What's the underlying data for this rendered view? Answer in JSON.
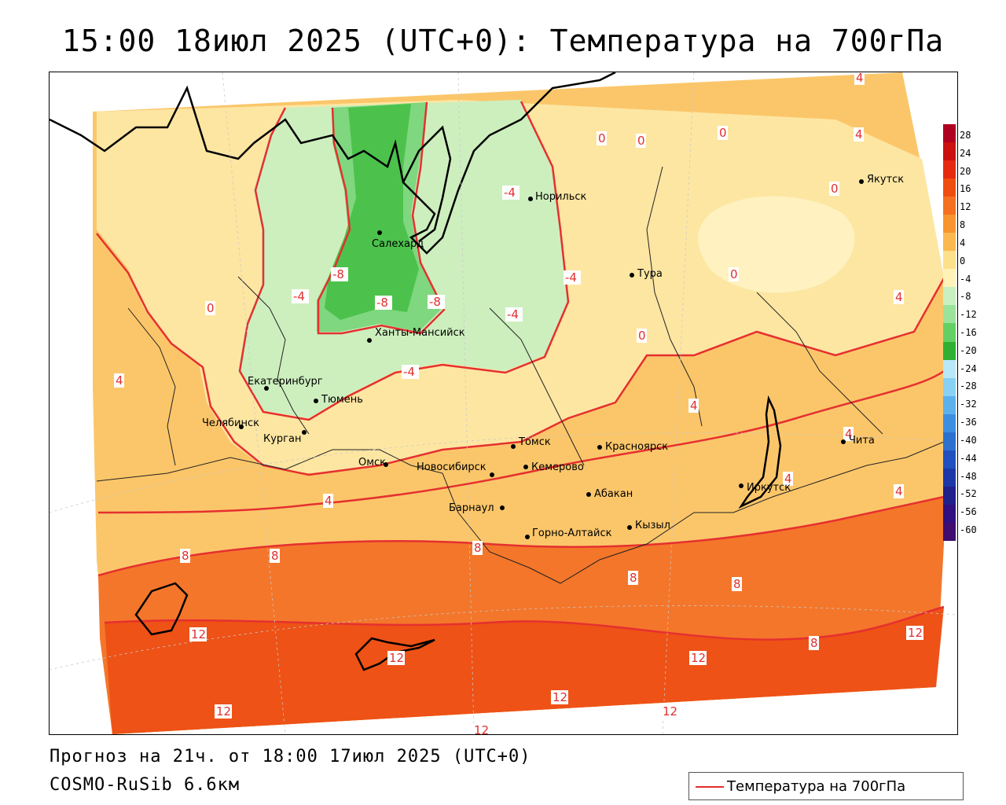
{
  "title": "15:00 18июл 2025 (UTC+0): Температура на 700гПа",
  "forecast_line": "Прогноз на 21ч. от 18:00 17июл 2025 (UTC+0)",
  "model_line": "COSMO-RuSib 6.6км",
  "legend": {
    "label": "Температура на 700гПа",
    "line_color": "#e03030"
  },
  "cities": [
    {
      "name": "Салехард"
    },
    {
      "name": "Норильск"
    },
    {
      "name": "Якутск"
    },
    {
      "name": "Тура"
    },
    {
      "name": "Ханты-Мансийск"
    },
    {
      "name": "Екатеринбург"
    },
    {
      "name": "Тюмень"
    },
    {
      "name": "Челябинск"
    },
    {
      "name": "Курган"
    },
    {
      "name": "Омск"
    },
    {
      "name": "Новосибирск"
    },
    {
      "name": "Томск"
    },
    {
      "name": "Красноярск"
    },
    {
      "name": "Кемерово"
    },
    {
      "name": "Абакан"
    },
    {
      "name": "Барнаул"
    },
    {
      "name": "Горно-Алтайск"
    },
    {
      "name": "Кызыл"
    },
    {
      "name": "Иркутск"
    },
    {
      "name": "Чита"
    }
  ],
  "contour_labels": [
    "-8",
    "-8",
    "-8",
    "-4",
    "-4",
    "-4",
    "-4",
    "-4",
    "0",
    "0",
    "0",
    "0",
    "0",
    "0",
    "0",
    "4",
    "4",
    "4",
    "4",
    "4",
    "4",
    "4",
    "4",
    "4",
    "8",
    "8",
    "8",
    "8",
    "8",
    "8",
    "12",
    "12",
    "12",
    "12",
    "12",
    "12",
    "12",
    "12"
  ],
  "colorbar": {
    "ticks": [
      "28",
      "24",
      "20",
      "16",
      "12",
      "8",
      "4",
      "0",
      "-4",
      "-8",
      "-12",
      "-16",
      "-20",
      "-24",
      "-28",
      "-32",
      "-36",
      "-40",
      "-44",
      "-48",
      "-52",
      "-56",
      "-60"
    ],
    "colors": [
      "#b00020",
      "#cc1010",
      "#e52a10",
      "#f04d10",
      "#f57020",
      "#f8952e",
      "#fbb850",
      "#fde08a",
      "#fff2b8",
      "#c8f0c0",
      "#9be39b",
      "#64d064",
      "#30b030",
      "#b8e8f8",
      "#88d0f4",
      "#5cb0ec",
      "#3c8ee0",
      "#2c70d0",
      "#2050c0",
      "#1c38a8",
      "#20208c",
      "#301080",
      "#400c70"
    ]
  }
}
